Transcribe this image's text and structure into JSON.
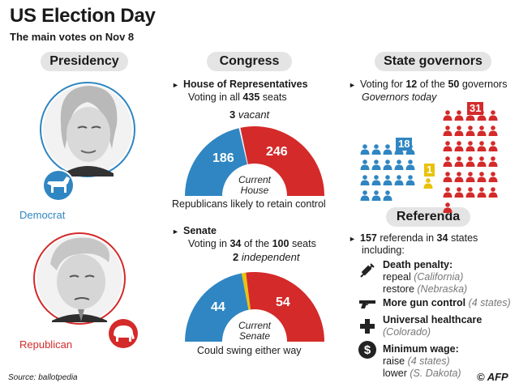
{
  "header": {
    "title": "US Election Day",
    "subtitle": "The main votes on Nov 8"
  },
  "presidency": {
    "heading": "Presidency",
    "candidates": [
      {
        "party": "Democrat",
        "color": "#2f86c2"
      },
      {
        "party": "Republican",
        "color": "#d42a2a"
      }
    ]
  },
  "congress": {
    "heading": "Congress",
    "house": {
      "title": "House of Representatives",
      "voting_prefix": "Voting in all",
      "seats": "435",
      "seats_suffix": "seats",
      "vacant_num": "3",
      "vacant_label": "vacant",
      "dem": 186,
      "vacant": 3,
      "rep": 246,
      "dem_label": "186",
      "rep_label": "246",
      "center_line1": "Current",
      "center_line2": "House",
      "note": "Republicans likely to retain control"
    },
    "senate": {
      "title": "Senate",
      "voting_prefix": "Voting in",
      "voting_num": "34",
      "voting_mid": "of the",
      "voting_total": "100",
      "voting_suffix": "seats",
      "indep_num": "2",
      "indep_label": "independent",
      "dem": 44,
      "indep": 2,
      "rep": 54,
      "dem_label": "44",
      "rep_label": "54",
      "center_line1": "Current",
      "center_line2": "Senate",
      "note": "Could swing either way"
    }
  },
  "governors": {
    "heading": "State governors",
    "voting_prefix": "Voting for",
    "voting_num": "12",
    "voting_mid": "of the",
    "voting_total": "50",
    "voting_suffix": "governors",
    "today_label": "Governors today",
    "dem": 18,
    "ind": 1,
    "rep": 31,
    "dem_label": "18",
    "ind_label": "1",
    "rep_label": "31",
    "colors": {
      "dem": "#2f86c2",
      "ind": "#e8c20c",
      "rep": "#d42a2a"
    }
  },
  "referenda": {
    "heading": "Referenda",
    "count": "157",
    "count_label": "referenda in",
    "states": "34",
    "states_label": "states",
    "including": "including:",
    "items": [
      {
        "icon": "syringe-icon",
        "title": "Death penalty:",
        "lines": [
          {
            "text": "repeal",
            "note": "(California)"
          },
          {
            "text": "restore",
            "note": "(Nebraska)"
          }
        ]
      },
      {
        "icon": "gun-icon",
        "title": "More gun control",
        "note": "(4 states)"
      },
      {
        "icon": "medical-cross-icon",
        "title": "Universal healthcare",
        "lines": [
          {
            "text": "",
            "note": "(Colorado)"
          }
        ]
      },
      {
        "icon": "dollar-icon",
        "title": "Minimum wage:",
        "lines": [
          {
            "text": "raise",
            "note": "(4 states)"
          },
          {
            "text": "lower",
            "note": "(S. Dakota)"
          }
        ]
      }
    ]
  },
  "footer": {
    "source": "Source: ballotpedia",
    "credit": "AFP"
  }
}
